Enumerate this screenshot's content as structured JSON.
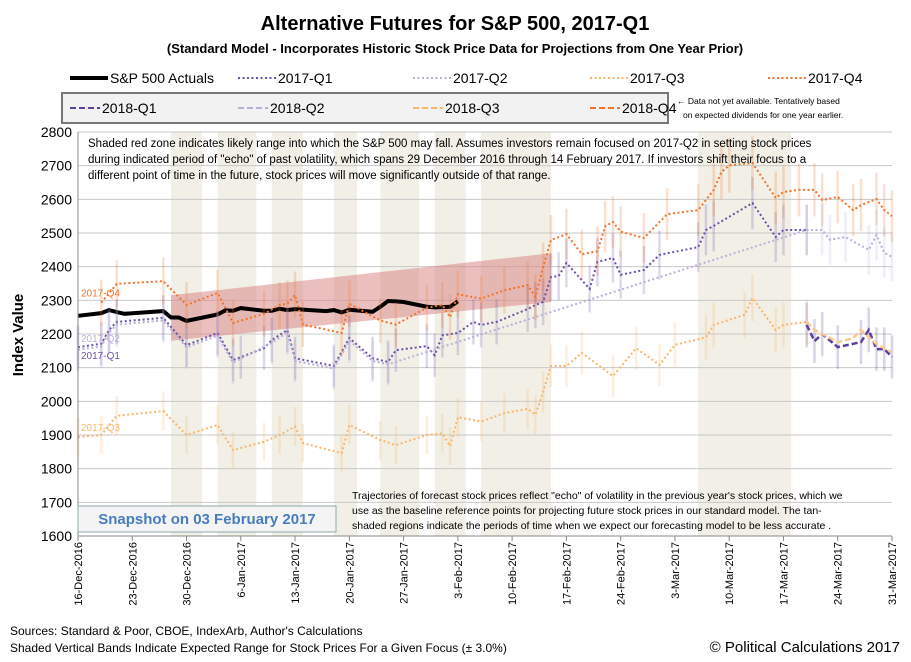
{
  "chart_data": {
    "type": "line",
    "title": "Alternative Futures for S&P 500, 2017-Q1",
    "subtitle": "(Standard Model - Incorporates Historic Stock Price Data for Projections from One Year Prior)",
    "ylabel": "Index Value",
    "xlabel": "",
    "ylim": [
      1600,
      2800
    ],
    "xlim": [
      "2016-12-16",
      "2017-03-31"
    ],
    "grid": true,
    "y_ticks": [
      "2800",
      "2700",
      "2600",
      "2500",
      "2400",
      "2300",
      "2200",
      "2100",
      "2000",
      "1900",
      "1800",
      "1700",
      "1600"
    ],
    "x_ticks": [
      {
        "date": "2016-12-16",
        "label": "16-Dec-2016"
      },
      {
        "date": "2016-12-23",
        "label": "23-Dec-2016"
      },
      {
        "date": "2016-12-30",
        "label": "30-Dec-2016"
      },
      {
        "date": "2017-01-06",
        "label": "6-Jan-2017"
      },
      {
        "date": "2017-01-13",
        "label": "13-Jan-2017"
      },
      {
        "date": "2017-01-20",
        "label": "20-Jan-2017"
      },
      {
        "date": "2017-01-27",
        "label": "27-Jan-2017"
      },
      {
        "date": "2017-02-03",
        "label": "3-Feb-2017"
      },
      {
        "date": "2017-02-10",
        "label": "10-Feb-2017"
      },
      {
        "date": "2017-02-17",
        "label": "17-Feb-2017"
      },
      {
        "date": "2017-02-24",
        "label": "24-Feb-2017"
      },
      {
        "date": "2017-03-03",
        "label": "3-Mar-2017"
      },
      {
        "date": "2017-03-10",
        "label": "10-Mar-2017"
      },
      {
        "date": "2017-03-17",
        "label": "17-Mar-2017"
      },
      {
        "date": "2017-03-24",
        "label": "24-Mar-2017"
      },
      {
        "date": "2017-03-31",
        "label": "31-Mar-2017"
      }
    ],
    "error_range_pct": 3.0,
    "legend": {
      "row1": [
        "S&P 500 Actuals",
        "2017-Q1",
        "2017-Q2",
        "2017-Q3",
        "2017-Q4"
      ],
      "row2": [
        "2018-Q1",
        "2018-Q2",
        "2018-Q3",
        "2018-Q4"
      ],
      "note_line1": "← Data not yet available. Tentatively based",
      "note_line2": "on expected dividends for one year earlier."
    },
    "series": [
      {
        "name": "S&P 500 Actuals",
        "color": "#000000",
        "style": "solid",
        "error_bars": false,
        "points": [
          [
            "2016-12-16",
            2254
          ],
          [
            "2016-12-19",
            2262
          ],
          [
            "2016-12-20",
            2271
          ],
          [
            "2016-12-21",
            2265
          ],
          [
            "2016-12-22",
            2260
          ],
          [
            "2016-12-27",
            2268
          ],
          [
            "2016-12-28",
            2249
          ],
          [
            "2016-12-29",
            2249
          ],
          [
            "2016-12-30",
            2239
          ],
          [
            "2017-01-03",
            2258
          ],
          [
            "2017-01-04",
            2270
          ],
          [
            "2017-01-05",
            2269
          ],
          [
            "2017-01-06",
            2277
          ],
          [
            "2017-01-09",
            2269
          ],
          [
            "2017-01-10",
            2269
          ],
          [
            "2017-01-11",
            2275
          ],
          [
            "2017-01-12",
            2271
          ],
          [
            "2017-01-13",
            2274
          ],
          [
            "2017-01-17",
            2268
          ],
          [
            "2017-01-18",
            2271
          ],
          [
            "2017-01-19",
            2264
          ],
          [
            "2017-01-20",
            2272
          ],
          [
            "2017-01-23",
            2266
          ],
          [
            "2017-01-24",
            2281
          ],
          [
            "2017-01-25",
            2298
          ],
          [
            "2017-01-26",
            2297
          ],
          [
            "2017-01-27",
            2295
          ],
          [
            "2017-01-30",
            2281
          ],
          [
            "2017-01-31",
            2279
          ],
          [
            "2017-02-01",
            2280
          ],
          [
            "2017-02-02",
            2281
          ],
          [
            "2017-02-03",
            2297
          ]
        ]
      },
      {
        "name": "2017-Q1",
        "color": "#6a52a8",
        "style": "dotted",
        "error_bars": true,
        "points": [
          [
            "2016-12-16",
            2161
          ],
          [
            "2016-12-19",
            2171
          ],
          [
            "2016-12-20",
            2212
          ],
          [
            "2016-12-21",
            2236
          ],
          [
            "2016-12-27",
            2248
          ],
          [
            "2016-12-30",
            2167
          ],
          [
            "2017-01-03",
            2203
          ],
          [
            "2017-01-05",
            2123
          ],
          [
            "2017-01-06",
            2131
          ],
          [
            "2017-01-09",
            2158
          ],
          [
            "2017-01-10",
            2182
          ],
          [
            "2017-01-12",
            2212
          ],
          [
            "2017-01-13",
            2128
          ],
          [
            "2017-01-18",
            2105
          ],
          [
            "2017-01-20",
            2188
          ],
          [
            "2017-01-23",
            2128
          ],
          [
            "2017-01-25",
            2117
          ],
          [
            "2017-01-26",
            2152
          ],
          [
            "2017-01-30",
            2164
          ],
          [
            "2017-01-31",
            2137
          ],
          [
            "2017-02-01",
            2196
          ],
          [
            "2017-02-03",
            2203
          ],
          [
            "2017-02-05",
            2236
          ],
          [
            "2017-02-06",
            2227
          ],
          [
            "2017-02-08",
            2236
          ],
          [
            "2017-02-12",
            2274
          ],
          [
            "2017-02-13",
            2286
          ],
          [
            "2017-02-14",
            2295
          ],
          [
            "2017-02-15",
            2369
          ],
          [
            "2017-02-16",
            2372
          ],
          [
            "2017-02-17",
            2411
          ],
          [
            "2017-02-20",
            2334
          ],
          [
            "2017-02-21",
            2414
          ],
          [
            "2017-02-23",
            2426
          ],
          [
            "2017-02-24",
            2376
          ],
          [
            "2017-02-27",
            2390
          ],
          [
            "2017-03-01",
            2435
          ],
          [
            "2017-03-06",
            2458
          ],
          [
            "2017-03-07",
            2509
          ],
          [
            "2017-03-08",
            2521
          ],
          [
            "2017-03-13",
            2589
          ],
          [
            "2017-03-16",
            2488
          ],
          [
            "2017-03-17",
            2509
          ],
          [
            "2017-03-20",
            2509
          ]
        ]
      },
      {
        "name": "2017-Q2",
        "color": "#b9b0d8",
        "style": "dotted",
        "error_bars": true,
        "points": [
          [
            "2016-12-16",
            2153
          ],
          [
            "2016-12-19",
            2163
          ],
          [
            "2016-12-20",
            2204
          ],
          [
            "2016-12-21",
            2228
          ],
          [
            "2016-12-27",
            2240
          ],
          [
            "2016-12-30",
            2160
          ],
          [
            "2017-01-03",
            2195
          ],
          [
            "2017-01-05",
            2115
          ],
          [
            "2017-01-10",
            2174
          ],
          [
            "2017-01-12",
            2204
          ],
          [
            "2017-01-13",
            2120
          ],
          [
            "2017-01-18",
            2097
          ],
          [
            "2017-01-20",
            2180
          ],
          [
            "2017-01-23",
            2120
          ],
          [
            "2017-01-25",
            2110
          ],
          [
            "2017-03-20",
            2509
          ],
          [
            "2017-03-22",
            2509
          ],
          [
            "2017-03-23",
            2480
          ],
          [
            "2017-03-25",
            2488
          ],
          [
            "2017-03-28",
            2450
          ],
          [
            "2017-03-29",
            2494
          ],
          [
            "2017-03-30",
            2441
          ],
          [
            "2017-03-31",
            2429
          ]
        ]
      },
      {
        "name": "2017-Q3",
        "color": "#fbb66a",
        "style": "dotted",
        "error_bars": true,
        "points": [
          [
            "2016-12-16",
            1894
          ],
          [
            "2016-12-19",
            1900
          ],
          [
            "2016-12-21",
            1957
          ],
          [
            "2016-12-27",
            1971
          ],
          [
            "2016-12-30",
            1900
          ],
          [
            "2017-01-03",
            1930
          ],
          [
            "2017-01-05",
            1855
          ],
          [
            "2017-01-09",
            1880
          ],
          [
            "2017-01-11",
            1900
          ],
          [
            "2017-01-13",
            1925
          ],
          [
            "2017-01-14",
            1876
          ],
          [
            "2017-01-19",
            1846
          ],
          [
            "2017-01-20",
            1930
          ],
          [
            "2017-01-24",
            1885
          ],
          [
            "2017-01-26",
            1870
          ],
          [
            "2017-01-30",
            1900
          ],
          [
            "2017-02-01",
            1905
          ],
          [
            "2017-02-02",
            1867
          ],
          [
            "2017-02-03",
            1953
          ],
          [
            "2017-02-06",
            1940
          ],
          [
            "2017-02-09",
            1965
          ],
          [
            "2017-02-12",
            1978
          ],
          [
            "2017-02-13",
            1960
          ],
          [
            "2017-02-14",
            2028
          ],
          [
            "2017-02-15",
            2105
          ],
          [
            "2017-02-17",
            2105
          ],
          [
            "2017-02-19",
            2144
          ],
          [
            "2017-02-23",
            2075
          ],
          [
            "2017-02-26",
            2158
          ],
          [
            "2017-03-01",
            2108
          ],
          [
            "2017-03-03",
            2168
          ],
          [
            "2017-03-07",
            2190
          ],
          [
            "2017-03-08",
            2227
          ],
          [
            "2017-03-12",
            2257
          ],
          [
            "2017-03-13",
            2307
          ],
          [
            "2017-03-16",
            2212
          ],
          [
            "2017-03-17",
            2227
          ],
          [
            "2017-03-20",
            2236
          ]
        ]
      },
      {
        "name": "2017-Q4",
        "color": "#f0742a",
        "style": "dotted",
        "error_bars": true,
        "points": [
          [
            "2016-12-19",
            2293
          ],
          [
            "2016-12-21",
            2349
          ],
          [
            "2016-12-27",
            2357
          ],
          [
            "2016-12-30",
            2286
          ],
          [
            "2017-01-03",
            2322
          ],
          [
            "2017-01-05",
            2233
          ],
          [
            "2017-01-09",
            2260
          ],
          [
            "2017-01-11",
            2286
          ],
          [
            "2017-01-12",
            2290
          ],
          [
            "2017-01-13",
            2316
          ],
          [
            "2017-01-14",
            2228
          ],
          [
            "2017-01-19",
            2203
          ],
          [
            "2017-01-20",
            2290
          ],
          [
            "2017-01-24",
            2240
          ],
          [
            "2017-01-26",
            2228
          ],
          [
            "2017-01-30",
            2278
          ],
          [
            "2017-02-01",
            2286
          ],
          [
            "2017-02-02",
            2250
          ],
          [
            "2017-02-03",
            2318
          ],
          [
            "2017-02-06",
            2305
          ],
          [
            "2017-02-09",
            2330
          ],
          [
            "2017-02-12",
            2345
          ],
          [
            "2017-02-13",
            2310
          ],
          [
            "2017-02-14",
            2399
          ],
          [
            "2017-02-15",
            2479
          ],
          [
            "2017-02-17",
            2497
          ],
          [
            "2017-02-19",
            2437
          ],
          [
            "2017-02-21",
            2446
          ],
          [
            "2017-02-22",
            2520
          ],
          [
            "2017-02-23",
            2533
          ],
          [
            "2017-02-24",
            2504
          ],
          [
            "2017-02-27",
            2485
          ],
          [
            "2017-03-02",
            2556
          ],
          [
            "2017-03-06",
            2568
          ],
          [
            "2017-03-08",
            2628
          ],
          [
            "2017-03-09",
            2681
          ],
          [
            "2017-03-10",
            2701
          ],
          [
            "2017-03-13",
            2708
          ],
          [
            "2017-03-16",
            2604
          ],
          [
            "2017-03-17",
            2622
          ],
          [
            "2017-03-19",
            2628
          ],
          [
            "2017-03-21",
            2628
          ],
          [
            "2017-03-22",
            2598
          ],
          [
            "2017-03-24",
            2607
          ],
          [
            "2017-03-26",
            2568
          ],
          [
            "2017-03-27",
            2583
          ],
          [
            "2017-03-29",
            2601
          ],
          [
            "2017-03-30",
            2568
          ],
          [
            "2017-03-31",
            2550
          ]
        ]
      },
      {
        "name": "2018-Q1",
        "color": "#5b3fa0",
        "style": "dashed",
        "error_bars": true,
        "points": [
          [
            "2017-03-20",
            2227
          ],
          [
            "2017-03-21",
            2179
          ],
          [
            "2017-03-22",
            2200
          ],
          [
            "2017-03-24",
            2161
          ],
          [
            "2017-03-27",
            2176
          ],
          [
            "2017-03-28",
            2212
          ],
          [
            "2017-03-29",
            2155
          ],
          [
            "2017-03-30",
            2155
          ],
          [
            "2017-03-31",
            2132
          ]
        ]
      },
      {
        "name": "2018-Q3",
        "color": "#fbc78c",
        "style": "dashed",
        "error_bars": false,
        "points": [
          [
            "2017-03-20",
            2236
          ],
          [
            "2017-03-21",
            2212
          ],
          [
            "2017-03-22",
            2200
          ],
          [
            "2017-03-24",
            2176
          ],
          [
            "2017-03-26",
            2188
          ],
          [
            "2017-03-27",
            2212
          ],
          [
            "2017-03-29",
            2170
          ],
          [
            "2017-03-31",
            2145
          ]
        ]
      }
    ],
    "red_zone": {
      "color": "#d98080",
      "start": "2016-12-28",
      "end": "2017-02-15",
      "low": [
        2180,
        2295
      ],
      "high": [
        2315,
        2440
      ]
    },
    "tan_bands": {
      "color": "#d8d0b8",
      "ranges": [
        [
          "2016-12-28",
          "2017-01-01"
        ],
        [
          "2017-01-03",
          "2017-01-08"
        ],
        [
          "2017-01-10",
          "2017-01-14"
        ],
        [
          "2017-01-18",
          "2017-01-21"
        ],
        [
          "2017-01-24",
          "2017-01-29"
        ],
        [
          "2017-01-31",
          "2017-02-04"
        ],
        [
          "2017-02-06",
          "2017-02-15"
        ],
        [
          "2017-03-06",
          "2017-03-18"
        ]
      ]
    },
    "series_labels": [
      {
        "text": "2017-Q4",
        "series": "2017-Q4"
      },
      {
        "text": "2017-Q2",
        "series": "2017-Q2"
      },
      {
        "text": "2017-Q1",
        "series": "2017-Q1"
      },
      {
        "text": "2017-Q3",
        "series": "2017-Q3"
      }
    ],
    "annotations": {
      "top": [
        "Shaded red zone  indicates likely range into which the S&P 500 may fall.  Assumes investors remain focused on 2017-Q2 in setting  stock prices",
        "during indicated period of \"echo\" of past volatility, which spans 29 December  2016 through 14 February 2017.  If investors shift their focus to  a",
        "different point of time  in the future, stock prices will move significantly outside of that range."
      ],
      "bottom": [
        "Trajectories of forecast stock prices reflect \"echo\" of volatility in  the previous year's stock prices, which we",
        "use as the baseline reference points for projecting future stock prices in our standard model.   The tan-",
        "shaded regions indicate the periods of time when we expect our forecasting model to be less accurate ."
      ],
      "snapshot": "Snapshot on 03 February 2017"
    }
  },
  "footer": {
    "sources": "Sources: Standard & Poor, CBOE, IndexArb, Author's Calculations",
    "bands_note": "Shaded Vertical Bands Indicate Expected Range for Stock Prices For a Given Focus (± 3.0%)",
    "copyright": "© Political Calculations 2017"
  }
}
